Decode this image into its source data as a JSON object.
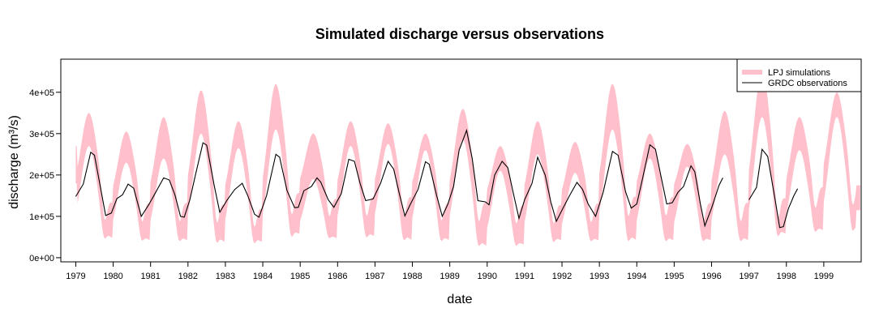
{
  "chart_data": {
    "type": "line",
    "title": "Simulated discharge versus observations",
    "xlabel": "date",
    "ylabel": "discharge (m³/s)",
    "xlim": [
      1978.6,
      2000.0
    ],
    "ylim": [
      -10000,
      480000
    ],
    "x_ticks": [
      "1979",
      "1980",
      "1981",
      "1982",
      "1983",
      "1984",
      "1985",
      "1986",
      "1987",
      "1988",
      "1989",
      "1990",
      "1991",
      "1992",
      "1993",
      "1994",
      "1995",
      "1996",
      "1997",
      "1998",
      "1999"
    ],
    "y_ticks": [
      {
        "value": 0,
        "label": "0e+00"
      },
      {
        "value": 100000,
        "label": "1e+05"
      },
      {
        "value": 200000,
        "label": "2e+05"
      },
      {
        "value": 300000,
        "label": "3e+05"
      },
      {
        "value": 400000,
        "label": "4e+05"
      }
    ],
    "legend_position": "top-right",
    "series": [
      {
        "name": "LPJ simulations",
        "style": "band",
        "color": "#ffc0cb",
        "years": [
          1979,
          1980,
          1981,
          1982,
          1983,
          1984,
          1985,
          1986,
          1987,
          1988,
          1989,
          1990,
          1991,
          1992,
          1993,
          1994,
          1995,
          1996,
          1997,
          1998,
          1999
        ],
        "annual_peak_upper": [
          350000,
          305000,
          340000,
          405000,
          330000,
          420000,
          300000,
          330000,
          325000,
          300000,
          360000,
          270000,
          330000,
          280000,
          420000,
          300000,
          275000,
          355000,
          455000,
          340000,
          400000
        ],
        "annual_peak_lower": [
          270000,
          230000,
          240000,
          300000,
          265000,
          310000,
          190000,
          270000,
          275000,
          260000,
          285000,
          210000,
          250000,
          205000,
          310000,
          240000,
          220000,
          250000,
          340000,
          260000,
          340000
        ],
        "annual_low_upper": [
          85000,
          70000,
          70000,
          70000,
          65000,
          55000,
          95000,
          80000,
          85000,
          85000,
          70000,
          70000,
          65000,
          65000,
          70000,
          85000,
          85000,
          70000,
          70000,
          80000,
          110000
        ],
        "annual_low_lower": [
          50000,
          45000,
          40000,
          40000,
          35000,
          35000,
          55000,
          45000,
          50000,
          40000,
          40000,
          25000,
          30000,
          40000,
          40000,
          40000,
          40000,
          40000,
          40000,
          55000,
          65000
        ],
        "end_value": 175000
      },
      {
        "name": "GRDC observations",
        "style": "line",
        "color": "#000000",
        "points": [
          {
            "x": 1979.0,
            "y": 148000
          },
          {
            "x": 1979.2,
            "y": 178000
          },
          {
            "x": 1979.4,
            "y": 255000
          },
          {
            "x": 1979.5,
            "y": 248000
          },
          {
            "x": 1979.65,
            "y": 175000
          },
          {
            "x": 1979.8,
            "y": 102000
          },
          {
            "x": 1979.95,
            "y": 108000
          },
          {
            "x": 1980.1,
            "y": 143000
          },
          {
            "x": 1980.25,
            "y": 152000
          },
          {
            "x": 1980.4,
            "y": 178000
          },
          {
            "x": 1980.55,
            "y": 168000
          },
          {
            "x": 1980.75,
            "y": 100000
          },
          {
            "x": 1980.95,
            "y": 128000
          },
          {
            "x": 1981.1,
            "y": 152000
          },
          {
            "x": 1981.35,
            "y": 193000
          },
          {
            "x": 1981.5,
            "y": 188000
          },
          {
            "x": 1981.65,
            "y": 152000
          },
          {
            "x": 1981.8,
            "y": 100000
          },
          {
            "x": 1981.9,
            "y": 98000
          },
          {
            "x": 1982.05,
            "y": 140000
          },
          {
            "x": 1982.2,
            "y": 200000
          },
          {
            "x": 1982.4,
            "y": 278000
          },
          {
            "x": 1982.5,
            "y": 272000
          },
          {
            "x": 1982.7,
            "y": 175000
          },
          {
            "x": 1982.85,
            "y": 110000
          },
          {
            "x": 1983.05,
            "y": 140000
          },
          {
            "x": 1983.25,
            "y": 165000
          },
          {
            "x": 1983.45,
            "y": 180000
          },
          {
            "x": 1983.6,
            "y": 150000
          },
          {
            "x": 1983.78,
            "y": 105000
          },
          {
            "x": 1983.9,
            "y": 98000
          },
          {
            "x": 1984.1,
            "y": 150000
          },
          {
            "x": 1984.35,
            "y": 250000
          },
          {
            "x": 1984.45,
            "y": 243000
          },
          {
            "x": 1984.65,
            "y": 162000
          },
          {
            "x": 1984.85,
            "y": 121000
          },
          {
            "x": 1984.95,
            "y": 122000
          },
          {
            "x": 1985.1,
            "y": 162000
          },
          {
            "x": 1985.3,
            "y": 172000
          },
          {
            "x": 1985.45,
            "y": 193000
          },
          {
            "x": 1985.55,
            "y": 183000
          },
          {
            "x": 1985.75,
            "y": 140000
          },
          {
            "x": 1985.9,
            "y": 122000
          },
          {
            "x": 1986.1,
            "y": 155000
          },
          {
            "x": 1986.3,
            "y": 238000
          },
          {
            "x": 1986.45,
            "y": 233000
          },
          {
            "x": 1986.6,
            "y": 180000
          },
          {
            "x": 1986.75,
            "y": 138000
          },
          {
            "x": 1986.95,
            "y": 142000
          },
          {
            "x": 1987.15,
            "y": 180000
          },
          {
            "x": 1987.35,
            "y": 233000
          },
          {
            "x": 1987.5,
            "y": 214000
          },
          {
            "x": 1987.65,
            "y": 155000
          },
          {
            "x": 1987.8,
            "y": 101000
          },
          {
            "x": 1987.95,
            "y": 130000
          },
          {
            "x": 1988.15,
            "y": 165000
          },
          {
            "x": 1988.35,
            "y": 232000
          },
          {
            "x": 1988.45,
            "y": 226000
          },
          {
            "x": 1988.65,
            "y": 150000
          },
          {
            "x": 1988.8,
            "y": 100000
          },
          {
            "x": 1988.95,
            "y": 130000
          },
          {
            "x": 1989.1,
            "y": 172000
          },
          {
            "x": 1989.25,
            "y": 260000
          },
          {
            "x": 1989.45,
            "y": 308000
          },
          {
            "x": 1989.6,
            "y": 240000
          },
          {
            "x": 1989.75,
            "y": 138000
          },
          {
            "x": 1989.95,
            "y": 135000
          },
          {
            "x": 1990.05,
            "y": 128000
          },
          {
            "x": 1990.2,
            "y": 200000
          },
          {
            "x": 1990.4,
            "y": 233000
          },
          {
            "x": 1990.55,
            "y": 218000
          },
          {
            "x": 1990.7,
            "y": 155000
          },
          {
            "x": 1990.85,
            "y": 95000
          },
          {
            "x": 1991.0,
            "y": 140000
          },
          {
            "x": 1991.2,
            "y": 180000
          },
          {
            "x": 1991.35,
            "y": 243000
          },
          {
            "x": 1991.55,
            "y": 200000
          },
          {
            "x": 1991.7,
            "y": 135000
          },
          {
            "x": 1991.85,
            "y": 88000
          },
          {
            "x": 1992.0,
            "y": 115000
          },
          {
            "x": 1992.2,
            "y": 150000
          },
          {
            "x": 1992.4,
            "y": 182000
          },
          {
            "x": 1992.55,
            "y": 165000
          },
          {
            "x": 1992.7,
            "y": 130000
          },
          {
            "x": 1992.9,
            "y": 100000
          },
          {
            "x": 1993.1,
            "y": 158000
          },
          {
            "x": 1993.35,
            "y": 257000
          },
          {
            "x": 1993.5,
            "y": 248000
          },
          {
            "x": 1993.7,
            "y": 160000
          },
          {
            "x": 1993.85,
            "y": 120000
          },
          {
            "x": 1994.0,
            "y": 130000
          },
          {
            "x": 1994.15,
            "y": 190000
          },
          {
            "x": 1994.35,
            "y": 273000
          },
          {
            "x": 1994.5,
            "y": 262000
          },
          {
            "x": 1994.65,
            "y": 195000
          },
          {
            "x": 1994.8,
            "y": 130000
          },
          {
            "x": 1994.95,
            "y": 133000
          },
          {
            "x": 1995.1,
            "y": 158000
          },
          {
            "x": 1995.25,
            "y": 172000
          },
          {
            "x": 1995.45,
            "y": 222000
          },
          {
            "x": 1995.55,
            "y": 208000
          },
          {
            "x": 1995.7,
            "y": 130000
          },
          {
            "x": 1995.82,
            "y": 77000
          },
          {
            "x": 1996.0,
            "y": 120000
          },
          {
            "x": 1996.2,
            "y": 175000
          },
          {
            "x": 1996.3,
            "y": 193000
          },
          {
            "x": 1997.0,
            "y": 140000
          },
          {
            "x": 1997.2,
            "y": 170000
          },
          {
            "x": 1997.35,
            "y": 262000
          },
          {
            "x": 1997.5,
            "y": 245000
          },
          {
            "x": 1997.7,
            "y": 140000
          },
          {
            "x": 1997.82,
            "y": 73000
          },
          {
            "x": 1997.92,
            "y": 75000
          },
          {
            "x": 1998.05,
            "y": 118000
          },
          {
            "x": 1998.2,
            "y": 150000
          },
          {
            "x": 1998.3,
            "y": 167000
          }
        ]
      }
    ]
  }
}
